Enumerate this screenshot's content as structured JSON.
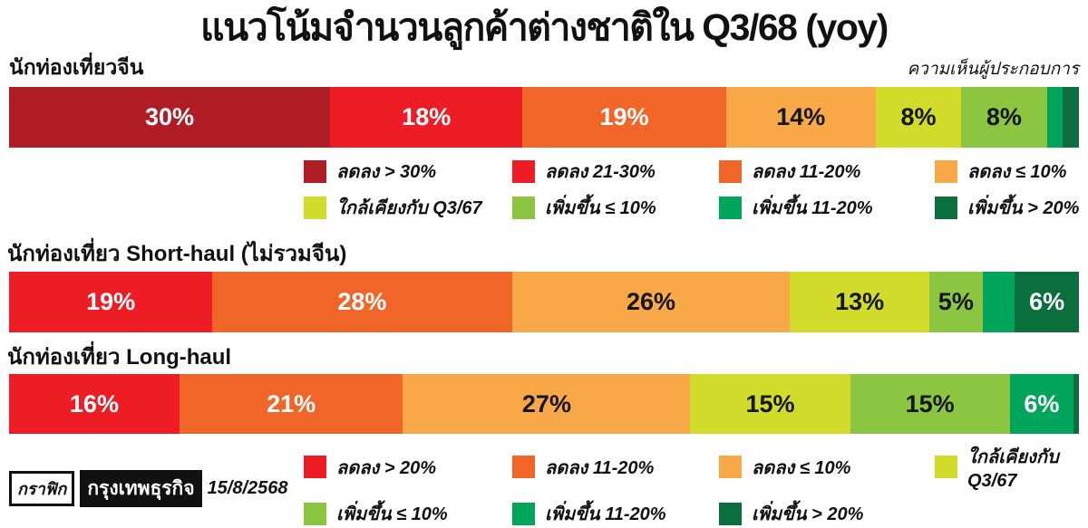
{
  "title": "แนวโน้มจำนวนลูกค้าต่างชาติใน Q3/68 (yoy)",
  "header": {
    "right_note": "ความเห็นผู้ประกอบการ"
  },
  "colors": {
    "palette": {
      "darkred": "#B01D24",
      "red": "#EE1C25",
      "orange": "#F26529",
      "amber": "#F9A847",
      "yellowgreen": "#D0DB2A",
      "lightgreen": "#8CC540",
      "emerald": "#00A55C",
      "darkgreen": "#0A6E3D"
    },
    "dark_text_keys": [
      "amber",
      "yellowgreen",
      "lightgreen"
    ],
    "light_text": "#FFFFFF",
    "dark_text": "#151515"
  },
  "chart_data": {
    "type": "bar",
    "subtype": "horizontal-100pct-stacked",
    "title": "แนวโน้มจำนวนลูกค้าต่างชาติใน Q3/68 (yoy)",
    "note": "ความเห็นผู้ประกอบการ",
    "unit": "percent of operators surveyed",
    "bars": [
      {
        "label": "นักท่องเที่ยวจีน",
        "segments": [
          {
            "value": 30,
            "label": "30%",
            "color": "darkred"
          },
          {
            "value": 18,
            "label": "18%",
            "color": "red"
          },
          {
            "value": 19,
            "label": "19%",
            "color": "orange"
          },
          {
            "value": 14,
            "label": "14%",
            "color": "amber"
          },
          {
            "value": 8,
            "label": "8%",
            "color": "yellowgreen"
          },
          {
            "value": 8,
            "label": "8%",
            "color": "lightgreen"
          },
          {
            "value": 1.5,
            "label": "",
            "color": "emerald"
          },
          {
            "value": 1.5,
            "label": "",
            "color": "darkgreen"
          }
        ]
      },
      {
        "label": "นักท่องเที่ยว Short-haul (ไม่รวมจีน)",
        "segments": [
          {
            "value": 19,
            "label": "19%",
            "color": "red"
          },
          {
            "value": 28,
            "label": "28%",
            "color": "orange"
          },
          {
            "value": 26,
            "label": "26%",
            "color": "amber"
          },
          {
            "value": 13,
            "label": "13%",
            "color": "yellowgreen"
          },
          {
            "value": 5,
            "label": "5%",
            "color": "lightgreen"
          },
          {
            "value": 3,
            "label": "",
            "color": "emerald"
          },
          {
            "value": 6,
            "label": "6%",
            "color": "darkgreen"
          }
        ]
      },
      {
        "label": "นักท่องเที่ยว Long-haul",
        "segments": [
          {
            "value": 16,
            "label": "16%",
            "color": "red"
          },
          {
            "value": 21,
            "label": "21%",
            "color": "orange"
          },
          {
            "value": 27,
            "label": "27%",
            "color": "amber"
          },
          {
            "value": 15,
            "label": "15%",
            "color": "yellowgreen"
          },
          {
            "value": 15,
            "label": "15%",
            "color": "lightgreen"
          },
          {
            "value": 6,
            "label": "6%",
            "color": "emerald"
          },
          {
            "value": 0.5,
            "label": "",
            "color": "darkgreen"
          }
        ]
      }
    ],
    "legend_top": [
      {
        "label": "ลดลง > 30%",
        "color": "darkred"
      },
      {
        "label": "ลดลง 21-30%",
        "color": "red"
      },
      {
        "label": "ลดลง 11-20%",
        "color": "orange"
      },
      {
        "label": "ลดลง ≤ 10%",
        "color": "amber"
      },
      {
        "label": "ใกล้เคียงกับ Q3/67",
        "color": "yellowgreen"
      },
      {
        "label": "เพิ่มขึ้น ≤ 10%",
        "color": "lightgreen"
      },
      {
        "label": "เพิ่มขึ้น 11-20%",
        "color": "emerald"
      },
      {
        "label": "เพิ่มขึ้น > 20%",
        "color": "darkgreen"
      }
    ],
    "legend_bottom": [
      {
        "label": "ลดลง > 20%",
        "color": "red"
      },
      {
        "label": "ลดลง 11-20%",
        "color": "orange"
      },
      {
        "label": "ลดลง ≤ 10%",
        "color": "amber"
      },
      {
        "label": "ใกล้เคียงกับ Q3/67",
        "color": "yellowgreen"
      },
      {
        "label": "เพิ่มขึ้น ≤ 10%",
        "color": "lightgreen"
      },
      {
        "label": "เพิ่มขึ้น 11-20%",
        "color": "emerald"
      },
      {
        "label": "เพิ่มขึ้น > 20%",
        "color": "darkgreen"
      }
    ]
  },
  "footer": {
    "credit_graphic": "กราฟิก",
    "credit_brand": "กรุงเทพธุรกิจ",
    "date": "15/8/2568"
  }
}
